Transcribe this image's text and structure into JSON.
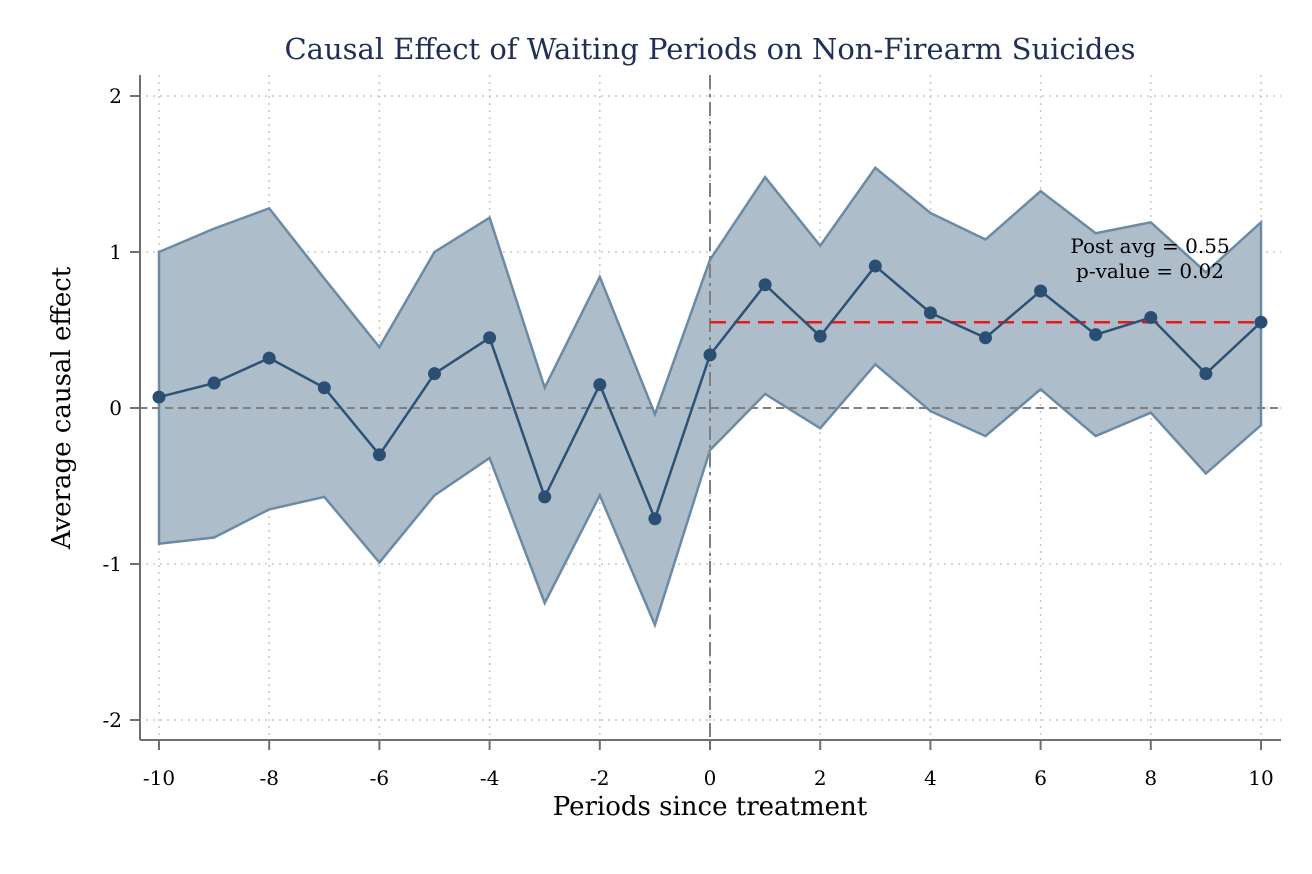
{
  "chart_data": {
    "type": "line",
    "title": "Causal Effect of Waiting Periods on Non-Firearm Suicides",
    "xlabel": "Periods since treatment",
    "ylabel": "Average causal effect",
    "xlim": [
      -10,
      10
    ],
    "ylim": [
      -2,
      2
    ],
    "x_ticks": [
      -10,
      -8,
      -6,
      -4,
      -2,
      0,
      2,
      4,
      6,
      8,
      10
    ],
    "y_ticks": [
      2,
      1,
      0,
      -1,
      -2
    ],
    "x_tick_labels": [
      "-10",
      "-8",
      "-6",
      "-4",
      "-2",
      "0",
      "2",
      "4",
      "6",
      "8",
      "10"
    ],
    "y_tick_labels": [
      "2",
      "1",
      "0",
      "-1",
      "-2"
    ],
    "grid": true,
    "x": [
      -10,
      -9,
      -8,
      -7,
      -6,
      -5,
      -4,
      -3,
      -2,
      -1,
      0,
      1,
      2,
      3,
      4,
      5,
      6,
      7,
      8,
      9,
      10
    ],
    "series": [
      {
        "values": [
          0.07,
          0.16,
          0.32,
          0.13,
          -0.3,
          0.22,
          0.45,
          -0.57,
          0.15,
          -0.71,
          0.34,
          0.79,
          0.46,
          0.91,
          0.61,
          0.45,
          0.75,
          0.47,
          0.58,
          0.22,
          0.55
        ],
        "ci_lower": [
          -0.87,
          -0.83,
          -0.65,
          -0.57,
          -0.99,
          -0.56,
          -0.32,
          -1.25,
          -0.56,
          -1.39,
          -0.27,
          0.09,
          -0.13,
          0.28,
          -0.02,
          -0.18,
          0.12,
          -0.18,
          -0.03,
          -0.42,
          -0.11
        ],
        "ci_upper": [
          1.0,
          1.15,
          1.28,
          0.83,
          0.39,
          1.0,
          1.22,
          0.13,
          0.84,
          -0.04,
          0.95,
          1.48,
          1.04,
          1.54,
          1.25,
          1.08,
          1.39,
          1.12,
          1.19,
          0.87,
          1.19
        ]
      }
    ],
    "post_average": {
      "value": 0.55,
      "x_from": 0,
      "x_to": 10
    },
    "reference_lines": {
      "horizontal_y": 0,
      "vertical_x": 0
    },
    "annotation": [
      "Post avg = 0.55",
      "p-value = 0.02"
    ]
  },
  "colors": {
    "title": "#1f2f55",
    "line": "#2d5276",
    "marker": "#2a4f73",
    "band_fill": "#aebdca",
    "band_edge": "#6a8aa6",
    "post_avg_line": "#e41a1c",
    "reference_line": "#7f7f7f",
    "grid": "#c7c7c7",
    "axis": "#6f6f6f"
  }
}
